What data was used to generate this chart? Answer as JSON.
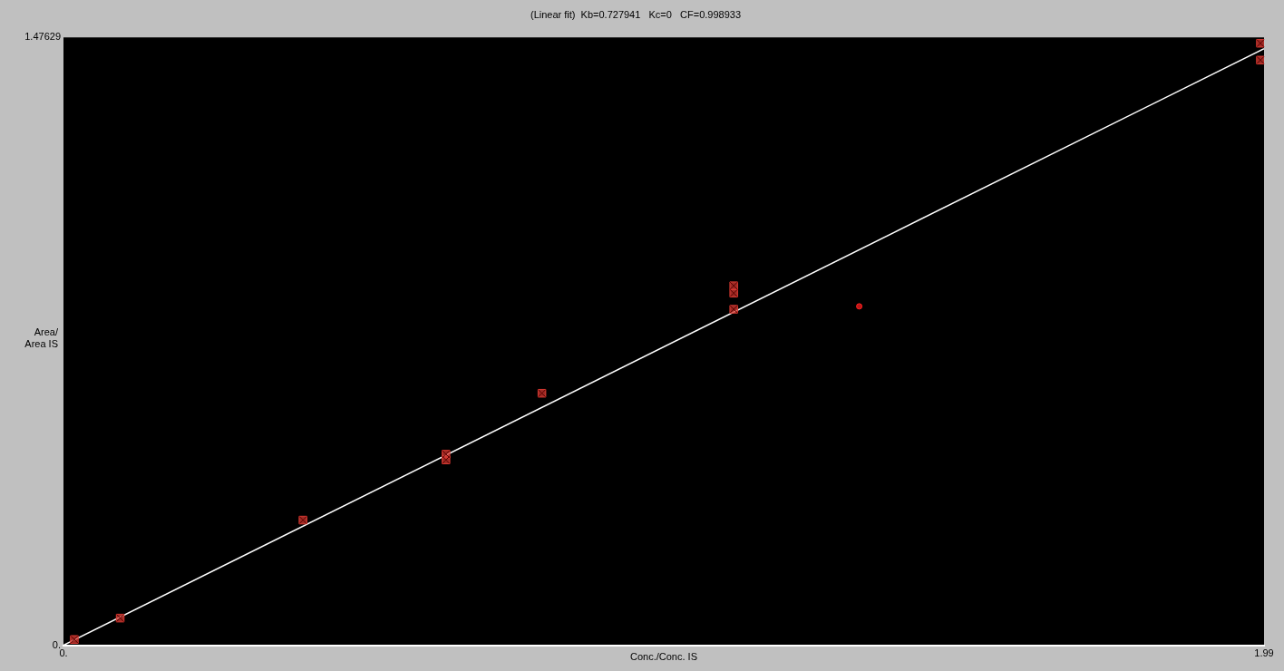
{
  "chart_data": {
    "type": "scatter",
    "title": "(Linear fit)  Kb=0.727941   Kc=0   CF=0.998933",
    "xlabel": "Conc./Conc. IS",
    "ylabel": "Area/\nArea IS",
    "xlim": [
      0,
      1.99
    ],
    "ylim": [
      0,
      1.47629
    ],
    "xticks": [
      {
        "value": 0,
        "label": "0."
      },
      {
        "value": 1.99,
        "label": "1.99"
      }
    ],
    "yticks": [
      {
        "value": 0,
        "label": "0."
      },
      {
        "value": 1.47629,
        "label": "1.47629"
      }
    ],
    "grid": false,
    "legend": false,
    "series": [
      {
        "color": "#d83a32",
        "marker": "square",
        "x": [
          0.018,
          0.094,
          0.397,
          0.634,
          0.634,
          0.793,
          1.111,
          1.111,
          1.111,
          1.984,
          1.984
        ],
        "values": [
          0.014,
          0.066,
          0.304,
          0.464,
          0.45,
          0.612,
          0.873,
          0.855,
          0.816,
          1.462,
          1.421
        ]
      },
      {
        "color": "#ff2020",
        "marker": "circle",
        "x": [
          1.319
        ],
        "values": [
          0.823
        ]
      },
      {
        "type": "line",
        "color": "#ffffff",
        "marker": "none",
        "line_style": "solid",
        "x": [
          0,
          1.99
        ],
        "values": [
          0,
          1.449
        ]
      }
    ]
  }
}
